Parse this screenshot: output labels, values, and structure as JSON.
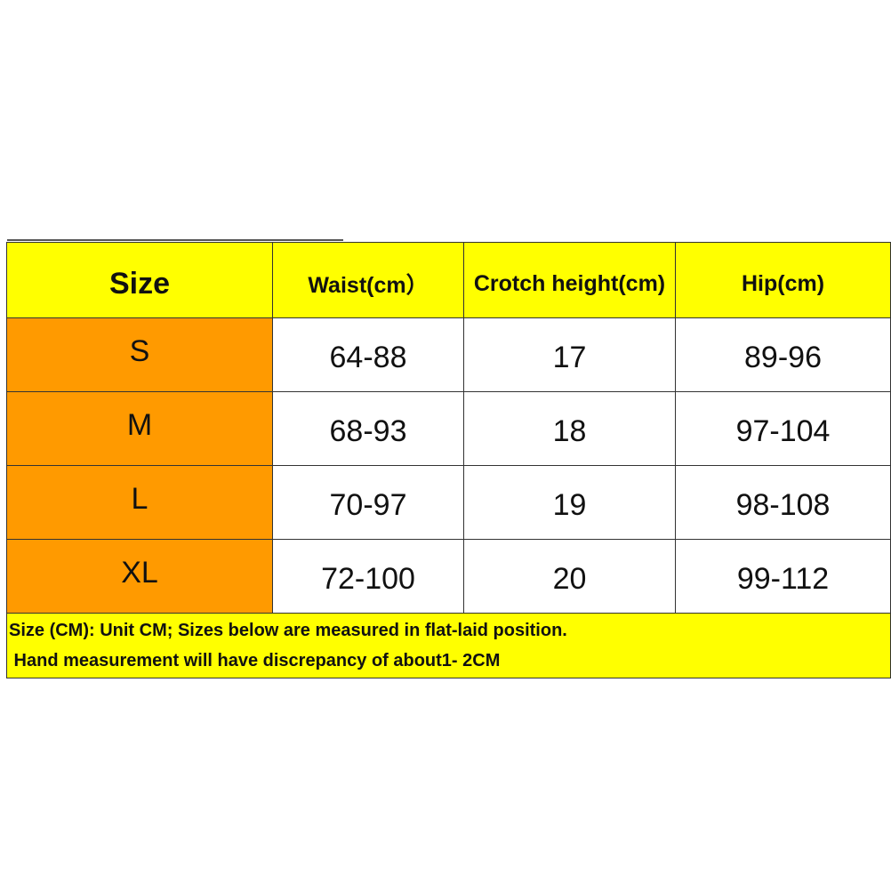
{
  "colors": {
    "header_bg": "#ffff00",
    "size_col_bg": "#ff9a00",
    "cell_bg": "#ffffff"
  },
  "table": {
    "headers": [
      "Size",
      "Waist(cm）",
      "Crotch height(cm)",
      "Hip(cm)"
    ],
    "rows": [
      [
        "S",
        "64-88",
        "17",
        "89-96"
      ],
      [
        "M",
        "68-93",
        "18",
        "97-104"
      ],
      [
        "L",
        "70-97",
        "19",
        "98-108"
      ],
      [
        "XL",
        "72-100",
        "20",
        "99-112"
      ]
    ],
    "notes": [
      "Size (CM): Unit CM; Sizes below are measured in flat-laid position.",
      " Hand measurement will have discrepancy of about1- 2CM"
    ]
  }
}
